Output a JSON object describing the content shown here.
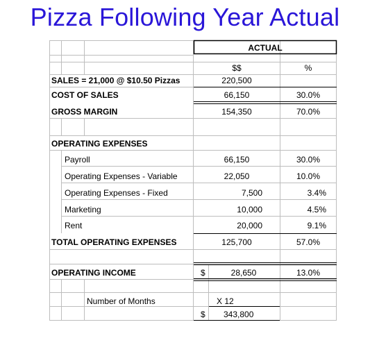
{
  "title": "Pizza Following Year Actual",
  "header": {
    "actual": "ACTUAL",
    "dollars": "$$",
    "percent": "%"
  },
  "rows": {
    "sales": {
      "label": "SALES = 21,000 @ $10.50 Pizzas",
      "amount": "220,500",
      "pct": ""
    },
    "cost_of_sales": {
      "label": "COST OF SALES",
      "amount": "66,150",
      "pct": "30.0%"
    },
    "gross_margin": {
      "label": "GROSS MARGIN",
      "amount": "154,350",
      "pct": "70.0%"
    },
    "opex_header": {
      "label": "OPERATING EXPENSES"
    },
    "payroll": {
      "label": "Payroll",
      "amount": "66,150",
      "pct": "30.0%"
    },
    "opex_variable": {
      "label": "Operating Expenses - Variable",
      "amount": "22,050",
      "pct": "10.0%"
    },
    "opex_fixed": {
      "label": "Operating Expenses - Fixed",
      "amount": "7,500",
      "pct": "3.4%"
    },
    "marketing": {
      "label": "Marketing",
      "amount": "10,000",
      "pct": "4.5%"
    },
    "rent": {
      "label": "Rent",
      "amount": "20,000",
      "pct": "9.1%"
    },
    "total_opex": {
      "label": "TOTAL OPERATING EXPENSES",
      "amount": "125,700",
      "pct": "57.0%"
    },
    "operating_income": {
      "label": "OPERATING INCOME",
      "currency": "$",
      "amount": "28,650",
      "pct": "13.0%"
    },
    "months": {
      "label": "Number of Months",
      "multiplier": "X 12"
    },
    "annual": {
      "currency": "$",
      "amount": "343,800"
    }
  }
}
